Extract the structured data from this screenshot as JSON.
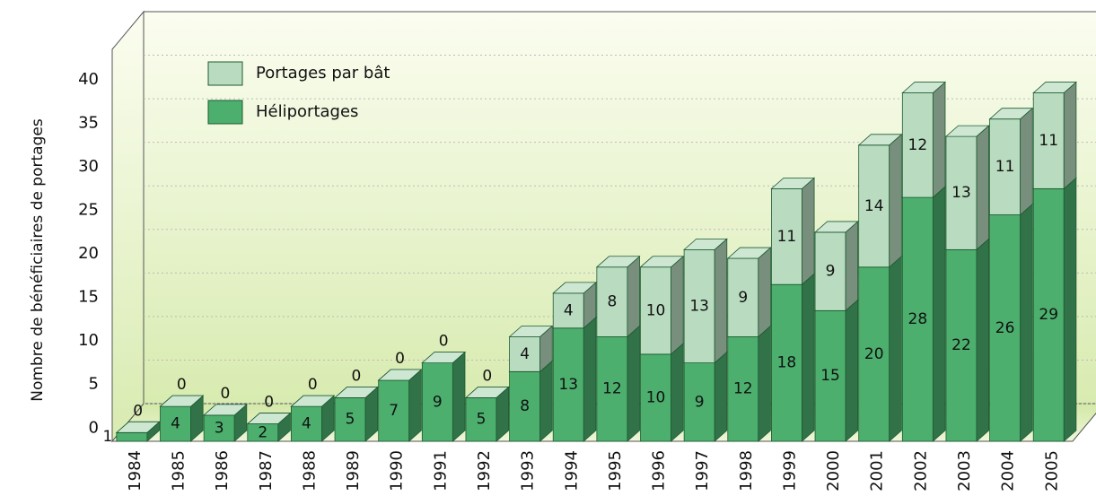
{
  "chart_data": {
    "type": "bar",
    "stacked": true,
    "y_label": "Nombre de bénéficiaires de portages",
    "categories": [
      "1984",
      "1985",
      "1986",
      "1987",
      "1988",
      "1989",
      "1990",
      "1991",
      "1992",
      "1993",
      "1994",
      "1995",
      "1996",
      "1997",
      "1998",
      "1999",
      "2000",
      "2001",
      "2002",
      "2003",
      "2004",
      "2005"
    ],
    "series": [
      {
        "name": "Héliportages",
        "color": "#4caf6e",
        "values": [
          1,
          4,
          3,
          2,
          4,
          5,
          7,
          9,
          5,
          8,
          13,
          12,
          10,
          9,
          12,
          18,
          15,
          20,
          28,
          22,
          26,
          29
        ]
      },
      {
        "name": "Portages par bât",
        "color": "#b9dcc0",
        "values": [
          0,
          0,
          0,
          0,
          0,
          0,
          0,
          0,
          0,
          4,
          4,
          8,
          10,
          13,
          9,
          11,
          9,
          14,
          12,
          13,
          11,
          11
        ]
      }
    ],
    "ylim": [
      0,
      45
    ],
    "yticks": [
      0,
      5,
      10,
      15,
      20,
      25,
      30,
      35,
      40
    ],
    "grid": true
  }
}
